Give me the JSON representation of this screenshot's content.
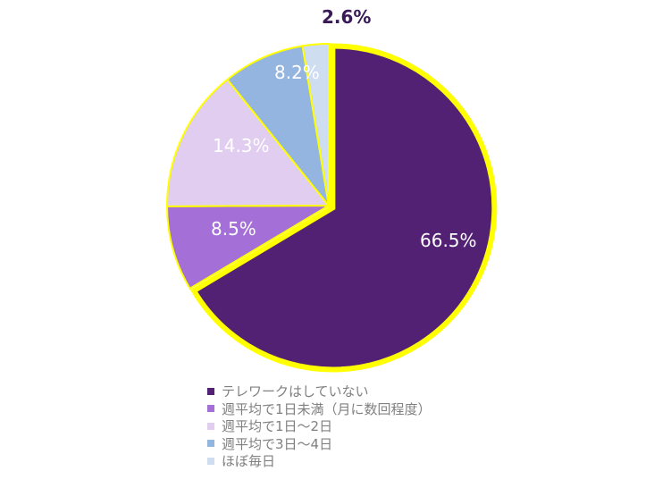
{
  "chart_data": {
    "type": "pie",
    "title": "",
    "categories": [
      "テレワークはしていない",
      "週平均で1日未満（月に数回程度）",
      "週平均で1日〜2日",
      "週平均で3日〜4日",
      "ほぼ毎日"
    ],
    "values": [
      66.5,
      8.5,
      14.3,
      8.2,
      2.6
    ],
    "data_labels": [
      "66.5%",
      "8.5%",
      "14.3%",
      "8.2%",
      "2.6%"
    ],
    "colors": [
      "#532174",
      "#a46fd6",
      "#e1cdef",
      "#95b5e1",
      "#cfddf1"
    ],
    "label_colors": [
      "#ffffff",
      "#ffffff",
      "#ffffff",
      "#ffffff",
      "#3a1a56"
    ],
    "border_color": "#ffff00",
    "exploded_slice_index": 0,
    "start_angle_deg": 0,
    "direction": "clockwise",
    "legend_position": "bottom"
  },
  "legend": {
    "items": [
      {
        "label": "テレワークはしていない",
        "color": "#532174"
      },
      {
        "label": "週平均で1日未満（月に数回程度）",
        "color": "#a46fd6"
      },
      {
        "label": "週平均で1日〜2日",
        "color": "#e1cdef"
      },
      {
        "label": "週平均で3日〜4日",
        "color": "#95b5e1"
      },
      {
        "label": "ほぼ毎日",
        "color": "#cfddf1"
      }
    ]
  }
}
